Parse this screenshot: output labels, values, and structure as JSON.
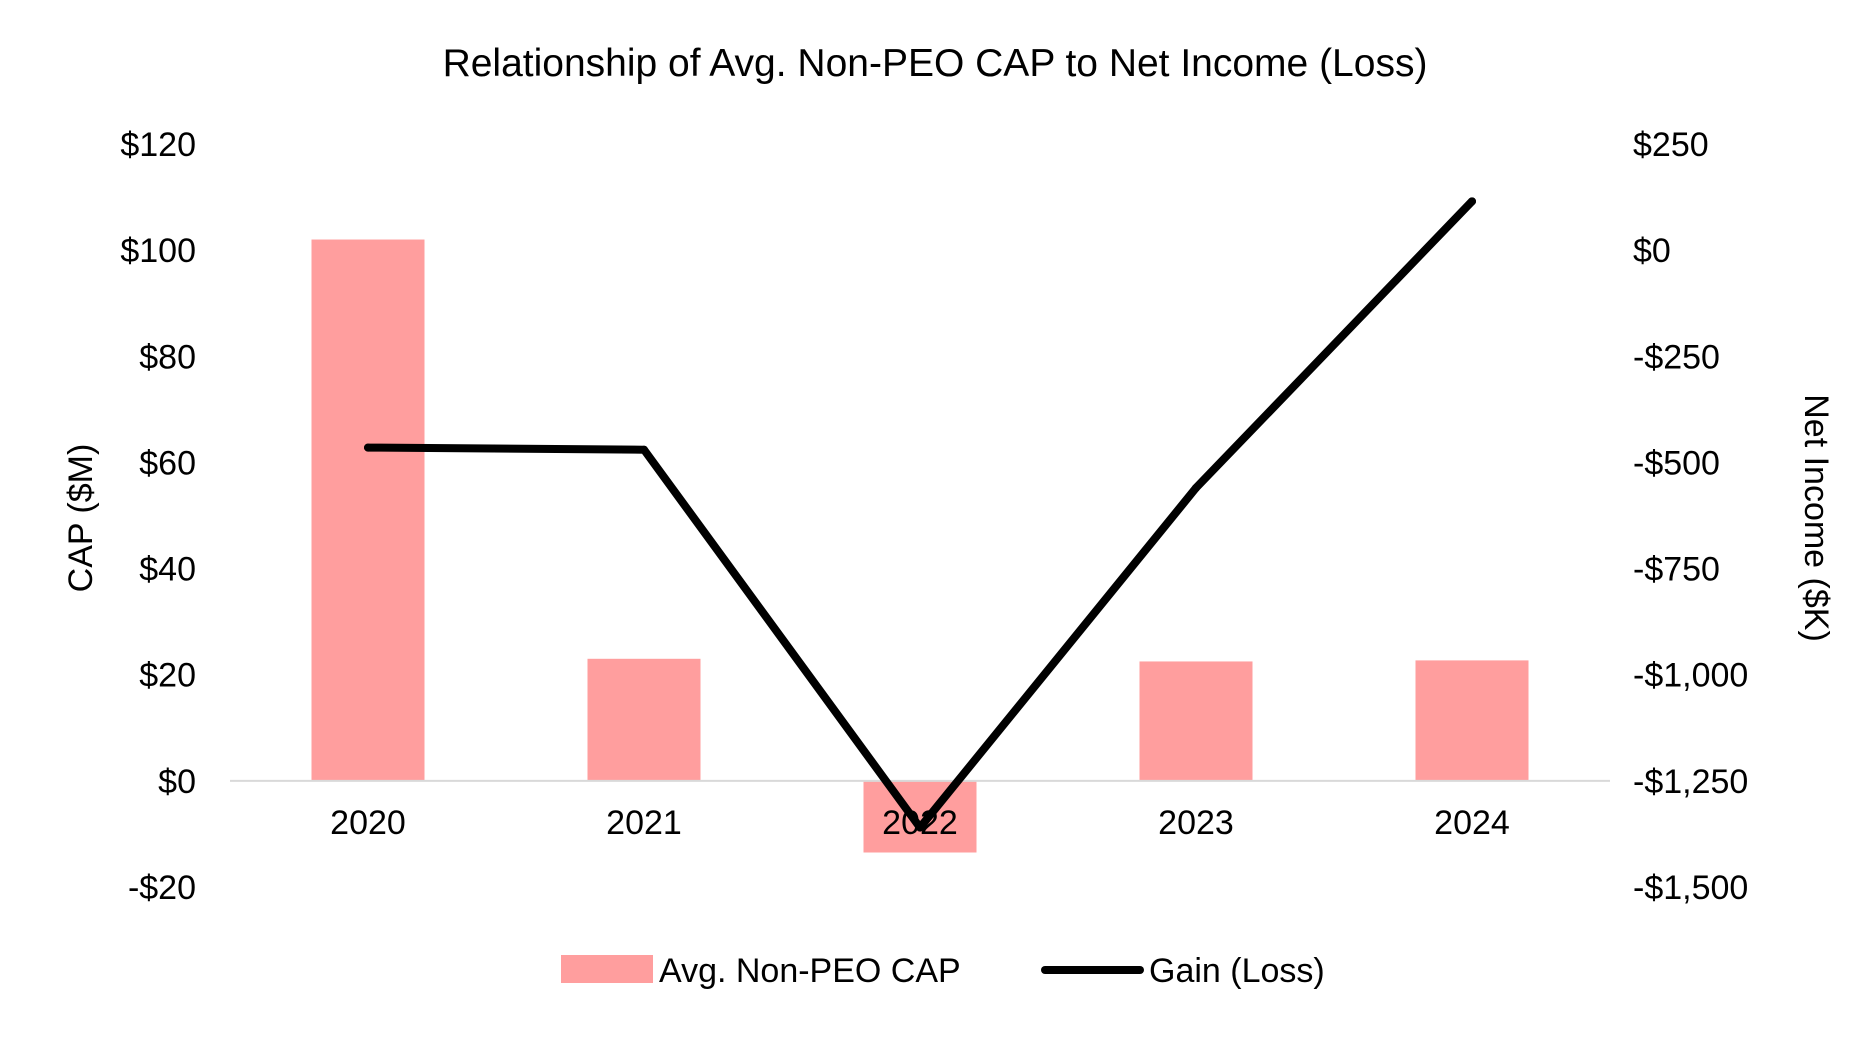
{
  "chart_data": {
    "type": "bar",
    "title": "Relationship of Avg. Non-PEO CAP to Net Income (Loss)",
    "categories": [
      "2020",
      "2021",
      "2022",
      "2023",
      "2024"
    ],
    "y_left": {
      "label": "CAP ($M)",
      "ylim": [
        -20,
        120
      ],
      "ticks": [
        120,
        100,
        80,
        60,
        40,
        20,
        0,
        -20
      ],
      "tick_labels": [
        "$120",
        "$100",
        "$80",
        "$60",
        "$40",
        "$20",
        "$0",
        "-$20"
      ]
    },
    "y_right": {
      "label": "Net Income ($K)",
      "ylim": [
        -1500,
        250
      ],
      "ticks": [
        250,
        0,
        -250,
        -500,
        -750,
        -1000,
        -1250,
        -1500
      ],
      "tick_labels": [
        "$250",
        "$0",
        "-$250",
        "-$500",
        "-$750",
        "-$1,000",
        "-$1,250",
        "-$1,500"
      ]
    },
    "series": [
      {
        "name": "Avg. Non-PEO CAP",
        "type": "bar",
        "axis": "left",
        "color": "#FF9E9E",
        "values": [
          102,
          23,
          -13.5,
          22.5,
          22.7
        ]
      },
      {
        "name": "Gain (Loss)",
        "type": "line",
        "axis": "right",
        "color": "#000000",
        "values": [
          -465,
          -470,
          -1360,
          -560,
          115
        ]
      }
    ],
    "grid": false,
    "legend_position": "bottom"
  }
}
